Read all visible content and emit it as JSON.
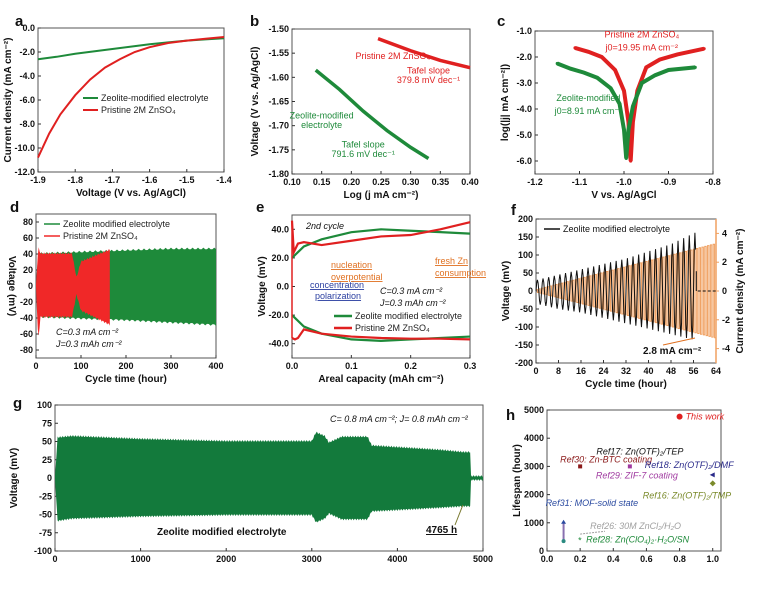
{
  "chart_data": [
    {
      "panel": "a",
      "type": "line",
      "xlabel": "Voltage (V vs. Ag/AgCl)",
      "ylabel": "Current density (mA cm⁻²)",
      "xlim": [
        -1.9,
        -1.4
      ],
      "ylim": [
        -12,
        0
      ],
      "xticks": [
        -1.9,
        -1.8,
        -1.7,
        -1.6,
        -1.5,
        -1.4
      ],
      "yticks": [
        0,
        -2,
        -4,
        -6,
        -8,
        -10,
        -12
      ],
      "legend_position": "center-right",
      "series": [
        {
          "name": "Zeolite-modified electrolyte",
          "color": "#1e8a3a",
          "x": [
            -1.9,
            -1.85,
            -1.8,
            -1.75,
            -1.7,
            -1.65,
            -1.6,
            -1.55,
            -1.5,
            -1.45,
            -1.4
          ],
          "y": [
            -2.6,
            -2.4,
            -2.15,
            -1.95,
            -1.75,
            -1.55,
            -1.35,
            -1.2,
            -1.05,
            -0.95,
            -0.85
          ]
        },
        {
          "name": "Pristine 2M ZnSO₄",
          "color": "#e02020",
          "x": [
            -1.9,
            -1.87,
            -1.84,
            -1.8,
            -1.76,
            -1.72,
            -1.68,
            -1.64,
            -1.6,
            -1.55,
            -1.5,
            -1.45,
            -1.4
          ],
          "y": [
            -10.8,
            -8.8,
            -7.2,
            -5.6,
            -4.3,
            -3.3,
            -2.6,
            -2.0,
            -1.6,
            -1.25,
            -1.05,
            -0.9,
            -0.75
          ]
        }
      ]
    },
    {
      "panel": "b",
      "type": "line",
      "xlabel": "Log (j mA cm⁻²)",
      "ylabel": "Voltage (V vs. Ag/AgCl)",
      "xlim": [
        0.1,
        0.4
      ],
      "ylim": [
        -1.8,
        -1.5
      ],
      "xticks": [
        0.1,
        0.15,
        0.2,
        0.25,
        0.3,
        0.35,
        0.4
      ],
      "yticks": [
        -1.5,
        -1.55,
        -1.6,
        -1.65,
        -1.7,
        -1.75,
        -1.8
      ],
      "series": [
        {
          "name": "Pristine 2M ZnSO₄",
          "color": "#e02020",
          "x": [
            0.245,
            0.3,
            0.35,
            0.4
          ],
          "y": [
            -1.52,
            -1.545,
            -1.565,
            -1.58
          ]
        },
        {
          "name": "Zeolite-modified electrolyte",
          "color": "#1e8a3a",
          "x": [
            0.14,
            0.18,
            0.22,
            0.26,
            0.3,
            0.33
          ],
          "y": [
            -1.585,
            -1.625,
            -1.67,
            -1.71,
            -1.745,
            -1.768
          ]
        }
      ],
      "annotations": [
        {
          "text": "Pristine 2M ZnSO₄",
          "color": "#e02020",
          "x": 0.27,
          "y": -1.562
        },
        {
          "text": "Tafel slope",
          "color": "#e02020",
          "x": 0.33,
          "y": -1.592
        },
        {
          "text": "379.8 mV dec⁻¹",
          "color": "#e02020",
          "x": 0.33,
          "y": -1.612
        },
        {
          "text": "Zeolite-modified",
          "color": "#1e8a3a",
          "x": 0.15,
          "y": -1.685
        },
        {
          "text": "electrolyte",
          "color": "#1e8a3a",
          "x": 0.15,
          "y": -1.705
        },
        {
          "text": "Tafel slope",
          "color": "#1e8a3a",
          "x": 0.22,
          "y": -1.745
        },
        {
          "text": "791.6 mV dec⁻¹",
          "color": "#1e8a3a",
          "x": 0.22,
          "y": -1.765
        }
      ]
    },
    {
      "panel": "c",
      "type": "scatter",
      "xlabel": "V vs. Ag/AgCl",
      "ylabel": "log(|j| mA cm⁻²|)",
      "xlim": [
        -1.2,
        -0.8
      ],
      "ylim": [
        -6.5,
        -1
      ],
      "xticks": [
        -1.2,
        -1.1,
        -1.0,
        -0.9,
        -0.8
      ],
      "yticks": [
        -1,
        -2,
        -3,
        -4,
        -5,
        -6
      ],
      "series": [
        {
          "name": "Pristine 2M ZnSO₄",
          "color": "#e02020",
          "x": [
            -1.11,
            -1.08,
            -1.05,
            -1.02,
            -1.0,
            -0.99,
            -0.985,
            -0.98,
            -0.97,
            -0.95,
            -0.92,
            -0.88,
            -0.82
          ],
          "y": [
            -1.65,
            -1.8,
            -2.0,
            -2.5,
            -3.3,
            -4.5,
            -6.0,
            -4.5,
            -3.3,
            -2.4,
            -2.1,
            -1.9,
            -1.68
          ]
        },
        {
          "name": "Zeolite-modified",
          "color": "#1e8a3a",
          "x": [
            -1.15,
            -1.12,
            -1.09,
            -1.06,
            -1.03,
            -1.01,
            -1.0,
            -0.995,
            -0.99,
            -0.98,
            -0.96,
            -0.93,
            -0.9,
            -0.84
          ],
          "y": [
            -2.25,
            -2.45,
            -2.6,
            -2.8,
            -3.2,
            -3.8,
            -4.8,
            -5.9,
            -4.8,
            -3.9,
            -3.0,
            -2.7,
            -2.5,
            -2.4
          ]
        }
      ],
      "annotations": [
        {
          "text": "Pristine 2M ZnSO₄",
          "color": "#e02020",
          "x": -0.96,
          "y": -1.25
        },
        {
          "text": "j0=19.95 mA cm⁻²",
          "color": "#e02020",
          "x": -0.96,
          "y": -1.75
        },
        {
          "text": "Zeolite-modified",
          "color": "#1e8a3a",
          "x": -1.08,
          "y": -3.7
        },
        {
          "text": "j0=8.91 mA cm⁻²",
          "color": "#1e8a3a",
          "x": -1.08,
          "y": -4.2
        }
      ]
    },
    {
      "panel": "d",
      "type": "area",
      "xlabel": "Cycle time (hour)",
      "ylabel": "Voltage (mV)",
      "xlim": [
        0,
        400
      ],
      "ylim": [
        -90,
        90
      ],
      "xticks": [
        0,
        100,
        200,
        300,
        400
      ],
      "yticks": [
        80,
        60,
        40,
        20,
        0,
        -20,
        -40,
        -60,
        -80
      ],
      "legend_position": "top-left",
      "series": [
        {
          "name": "Zeolite modified electrolyte",
          "color": "#1e8a3a",
          "x": [
            0,
            5,
            100,
            200,
            300,
            400
          ],
          "upper": [
            0,
            40,
            42,
            44,
            46,
            46
          ],
          "lower": [
            0,
            -38,
            -40,
            -42,
            -45,
            -48
          ]
        },
        {
          "name": "Pristine 2M ZnSO₄",
          "color": "#f02828",
          "x": [
            0,
            5,
            10,
            80,
            90,
            100,
            165
          ],
          "upper": [
            0,
            48,
            40,
            40,
            10,
            30,
            45
          ],
          "lower": [
            0,
            -68,
            -38,
            -38,
            -10,
            -30,
            -48
          ]
        }
      ],
      "annotations": [
        {
          "text": "C=0.3 mA cm⁻²"
        },
        {
          "text": "J=0.3 mAh cm⁻²"
        }
      ]
    },
    {
      "panel": "e",
      "type": "line",
      "xlabel": "Areal capacity (mAh cm⁻²)",
      "ylabel": "Voltage (mV)",
      "xlim": [
        0,
        0.3
      ],
      "ylim": [
        -50,
        50
      ],
      "xticks": [
        0.0,
        0.1,
        0.2,
        0.3
      ],
      "yticks": [
        40,
        20,
        0,
        -20,
        -40
      ],
      "legend_position": "center-right",
      "series": [
        {
          "name": "Zeolite modified electrolyte",
          "color": "#1e8a3a",
          "charge_x": [
            0,
            0.02,
            0.05,
            0.1,
            0.15,
            0.2,
            0.25,
            0.3
          ],
          "charge_y": [
            20,
            28,
            33,
            38,
            40,
            39,
            38,
            37
          ],
          "discharge_x": [
            0,
            0.02,
            0.05,
            0.1,
            0.15,
            0.2,
            0.25,
            0.3
          ],
          "discharge_y": [
            -20,
            -28,
            -33,
            -37,
            -38,
            -37,
            -36,
            -35
          ]
        },
        {
          "name": "Pristine 2M ZnSO₄",
          "color": "#e02020",
          "charge_x": [
            0,
            0.003,
            0.01,
            0.02,
            0.05,
            0.1,
            0.15,
            0.2,
            0.25,
            0.3
          ],
          "charge_y": [
            46,
            24,
            30,
            31,
            29,
            32,
            35,
            36,
            40,
            45
          ],
          "discharge_x": [
            0,
            0.005,
            0.01,
            0.02,
            0.05,
            0.1,
            0.15,
            0.2,
            0.25,
            0.3
          ],
          "discharge_y": [
            -36,
            -37,
            -36,
            -30,
            -33,
            -35,
            -36,
            -36.5,
            -36.5,
            -37
          ]
        }
      ],
      "annotations": [
        {
          "text": "2nd cycle",
          "color": "#111111"
        },
        {
          "text": "nucleation",
          "color": "#e07020"
        },
        {
          "text": "overpotential",
          "color": "#e07020"
        },
        {
          "text": "fresh Zn",
          "color": "#e07020"
        },
        {
          "text": "consumption",
          "color": "#e07020"
        },
        {
          "text": "concentration",
          "color": "#2a3ea0"
        },
        {
          "text": "polarization",
          "color": "#2a3ea0"
        },
        {
          "text": "C=0.3 mA cm⁻²",
          "color": "#111111"
        },
        {
          "text": "J=0.3 mAh cm⁻²",
          "color": "#111111"
        }
      ]
    },
    {
      "panel": "f",
      "type": "line",
      "xlabel": "Cycle time (hour)",
      "ylabel": "Voltage (mV)",
      "y2label": "Current density (mA cm⁻²)",
      "xlim": [
        0,
        64
      ],
      "ylim": [
        -200,
        200
      ],
      "y2lim": [
        -5,
        5
      ],
      "xticks": [
        0,
        8,
        16,
        24,
        32,
        40,
        48,
        56,
        64
      ],
      "yticks": [
        200,
        150,
        100,
        50,
        0,
        -50,
        -100,
        -150,
        -200
      ],
      "y2ticks": [
        4,
        2,
        0,
        -2,
        -4
      ],
      "legend_position": "top-left",
      "series": [
        {
          "name": "Zeolite modified electrolyte",
          "color": "#111111",
          "x": [
            0,
            8,
            16,
            24,
            32,
            40,
            48,
            56
          ],
          "amplitude_upper": [
            30,
            45,
            60,
            75,
            90,
            110,
            130,
            160
          ],
          "amplitude_lower": [
            -35,
            -50,
            -60,
            -75,
            -90,
            -105,
            -120,
            -135
          ]
        },
        {
          "name": "Current density",
          "color": "#f0a060",
          "axis": "y2",
          "x": [
            0,
            64
          ],
          "amplitude": [
            0.1,
            3.3
          ]
        }
      ],
      "annotations": [
        {
          "text": "2.8 mA cm⁻²",
          "color": "#e07020"
        }
      ]
    },
    {
      "panel": "g",
      "type": "area",
      "xlabel": "",
      "ylabel": "Voltage (mV)",
      "xlim": [
        0,
        5000
      ],
      "ylim": [
        -100,
        100
      ],
      "xticks": [
        0,
        1000,
        2000,
        3000,
        4000,
        5000
      ],
      "yticks": [
        100,
        75,
        50,
        25,
        0,
        -25,
        -50,
        -75,
        -100
      ],
      "series": [
        {
          "name": "Zeolite modified electrolyte",
          "color": "#137a3c",
          "x": [
            0,
            30,
            200,
            1000,
            2000,
            3000,
            3050,
            3150,
            3200,
            3350,
            3400,
            3650,
            3700,
            4500,
            4765,
            4850,
            4860,
            5000
          ],
          "upper": [
            0,
            55,
            57,
            53,
            50,
            50,
            62,
            57,
            48,
            56,
            56,
            56,
            44,
            38,
            35,
            35,
            2,
            2
          ],
          "lower": [
            0,
            -58,
            -55,
            -52,
            -50,
            -50,
            -60,
            -55,
            -48,
            -56,
            -56,
            -56,
            -45,
            -40,
            -38,
            -38,
            -2,
            -2
          ]
        }
      ],
      "annotations": [
        {
          "text": "C= 0.8 mA cm⁻²; J= 0.8 mAh cm⁻²",
          "color": "#111111"
        },
        {
          "text": "Zeolite modified electrolyte",
          "color": "#1e8a3a"
        },
        {
          "text": "4765 h",
          "color": "#1e8a3a",
          "x": 4765
        }
      ]
    },
    {
      "panel": "h",
      "type": "scatter",
      "xlabel": "",
      "ylabel": "Lifespan (hour)",
      "xlim": [
        0,
        1.05
      ],
      "ylim": [
        0,
        5000
      ],
      "xticks": [
        0.0,
        0.2,
        0.4,
        0.6,
        0.8,
        1.0
      ],
      "yticks": [
        0,
        1000,
        2000,
        3000,
        4000,
        5000
      ],
      "points": [
        {
          "label": "This work",
          "x": 0.8,
          "y": 4765,
          "color": "#e02020",
          "marker": "circle"
        },
        {
          "label": "Ref17: Zn(OTF)₂/TEP",
          "x": 0.5,
          "y": 3000,
          "color": "#111111",
          "marker": "none"
        },
        {
          "label": "Ref30: Zn-BTC coating",
          "x": 0.2,
          "y": 3000,
          "color": "#8b1a1a",
          "marker": "square"
        },
        {
          "label": "Ref29: ZIF-7 coating",
          "x": 0.5,
          "y": 3000,
          "color": "#a03aa0",
          "marker": "square"
        },
        {
          "label": "Ref18: Zn(OTF)₂/DMF",
          "x": 1.0,
          "y": 2700,
          "color": "#2a2a8a",
          "marker": "triangle-left"
        },
        {
          "label": "Ref16: Zn(OTF)₂/TMP",
          "x": 1.0,
          "y": 2400,
          "color": "#7a8a2a",
          "marker": "diamond"
        },
        {
          "label": "Ref31: MOF-solid state",
          "x": 0.1,
          "y": 1000,
          "color": "#2a4aa0",
          "marker": "triangle-up"
        },
        {
          "label": "Ref26: 30M ZnCl₂/H₂O",
          "x": 0.2,
          "y": 600,
          "color": "#a0a0a0",
          "marker": "none"
        },
        {
          "label": "Ref28: Zn(ClO₄)₂·H₂O/SN",
          "x": 0.2,
          "y": 400,
          "color": "#1e8a3a",
          "marker": "star"
        },
        {
          "label": "",
          "x": 0.1,
          "y": 350,
          "color": "#2a8a80",
          "marker": "circle"
        }
      ]
    }
  ],
  "panel_letters": [
    "a",
    "b",
    "c",
    "d",
    "e",
    "f",
    "g",
    "h"
  ]
}
